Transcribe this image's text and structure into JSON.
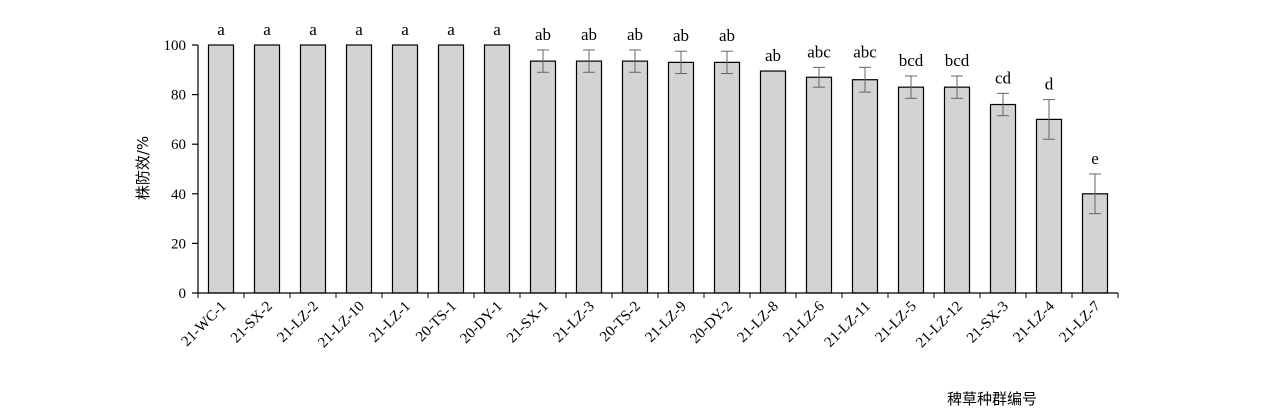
{
  "chart_data": {
    "type": "bar",
    "xlabel": "稗草种群编号",
    "ylabel": "株防效/%",
    "ylim": [
      0,
      100
    ],
    "yticks": [
      0,
      20,
      40,
      60,
      80,
      100
    ],
    "grid": false,
    "legend": "none",
    "bar_color": "#d3d3d3",
    "categories": [
      "21-WC-1",
      "21-SX-2",
      "21-LZ-2",
      "21-LZ-10",
      "21-LZ-1",
      "20-TS-1",
      "20-DY-1",
      "21-SX-1",
      "21-LZ-3",
      "20-TS-2",
      "21-LZ-9",
      "20-DY-2",
      "21-LZ-8",
      "21-LZ-6",
      "21-LZ-11",
      "21-LZ-5",
      "21-LZ-12",
      "21-SX-3",
      "21-LZ-4",
      "21-LZ-7"
    ],
    "values": [
      100,
      100,
      100,
      100,
      100,
      100,
      100,
      93.5,
      93.5,
      93.5,
      93,
      93,
      89.5,
      87,
      86,
      83,
      83,
      76,
      70,
      40
    ],
    "errors": [
      0,
      0,
      0,
      0,
      0,
      0,
      0,
      4.5,
      4.5,
      4.5,
      4.5,
      4.5,
      0,
      4,
      5,
      4.5,
      4.5,
      4.5,
      8,
      8
    ],
    "significance_letters": [
      "a",
      "a",
      "a",
      "a",
      "a",
      "a",
      "a",
      "ab",
      "ab",
      "ab",
      "ab",
      "ab",
      "ab",
      "abc",
      "abc",
      "bcd",
      "bcd",
      "cd",
      "d",
      "e"
    ]
  }
}
